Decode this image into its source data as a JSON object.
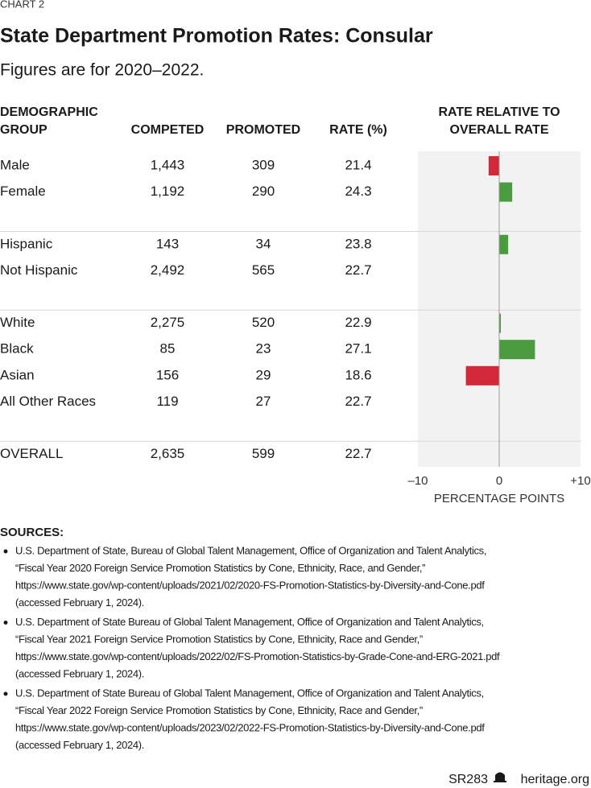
{
  "header": {
    "label": "CHART 2",
    "title": "State Department Promotion Rates: Consular",
    "subtitle": "Figures are for 2020–2022."
  },
  "table": {
    "columns": [
      [
        "DEMOGRAPHIC",
        "GROUP"
      ],
      [
        "COMPETED"
      ],
      [
        "PROMOTED"
      ],
      [
        "RATE (%)"
      ]
    ],
    "sections": [
      [
        [
          "Male",
          "1,443",
          309,
          21.4
        ],
        [
          "Female",
          "1,192",
          290,
          24.3
        ]
      ],
      [
        [
          "Hispanic",
          143,
          34,
          23.8
        ],
        [
          "Not Hispanic",
          "2,492",
          565,
          22.7
        ]
      ],
      [
        [
          "White",
          "2,275",
          520,
          22.9
        ],
        [
          "Black",
          85,
          23,
          27.1
        ],
        [
          "Asian",
          156,
          29,
          18.6
        ],
        [
          "All Other Races",
          119,
          27,
          22.7
        ]
      ],
      [
        [
          "OVERALL",
          "2,635",
          599,
          22.7
        ]
      ]
    ]
  },
  "chart_data": {
    "type": "bar",
    "orientation": "horizontal",
    "title": [
      "RATE RELATIVE TO",
      "OVERALL RATE"
    ],
    "values": [
      -1.3,
      1.6,
      1.1,
      -0.05,
      0.2,
      4.4,
      -4.1,
      -0.05,
      null
    ],
    "positive_color": "#4a9c3f",
    "negative_color": "#d3273a",
    "xlim": [
      -10,
      10
    ],
    "xticks": [
      {
        "value": -10,
        "label": "–10"
      },
      0,
      {
        "value": 10,
        "label": "+10"
      }
    ],
    "xlabel": "PERCENTAGE POINTS"
  },
  "sources": {
    "heading": "SOURCES:",
    "items": [
      [
        "U.S. Department of State, Bureau of Global Talent Management, Office of Organization and Talent Analytics,",
        "“Fiscal Year 2020 Foreign Service Promotion Statistics by Cone, Ethnicity, Race, and Gender,”",
        "https://www.state.gov/wp-content/uploads/2021/02/2020-FS-Promotion-Statistics-by-Diversity-and-Cone.pdf",
        "(accessed February 1, 2024)."
      ],
      [
        "U.S. Department of State Bureau of Global Talent Management, Office of Organization and Talent Analytics,",
        "“Fiscal Year 2021 Foreign Service Promotion Statistics by Cone, Ethnicity, Race and Gender,”",
        "https://www.state.gov/wp-content/uploads/2022/02/FS-Promotion-Statistics-by-Grade-Cone-and-ERG-2021.pdf",
        "(accessed February 1, 2024)."
      ],
      [
        "U.S. Department of State Bureau of Global Talent Management, Office of Organization and Talent Analytics,",
        "“Fiscal Year 2022 Foreign Service Promotion Statistics by Cone, Ethnicity, Race and Gender,”",
        "https://www.state.gov/wp-content/uploads/2023/02/2022-FS-Promotion-Statistics-by-Diversity-and-Cone.pdf",
        "(accessed February 1, 2024)."
      ]
    ]
  },
  "footer": {
    "report": "SR283",
    "site": "heritage.org"
  }
}
